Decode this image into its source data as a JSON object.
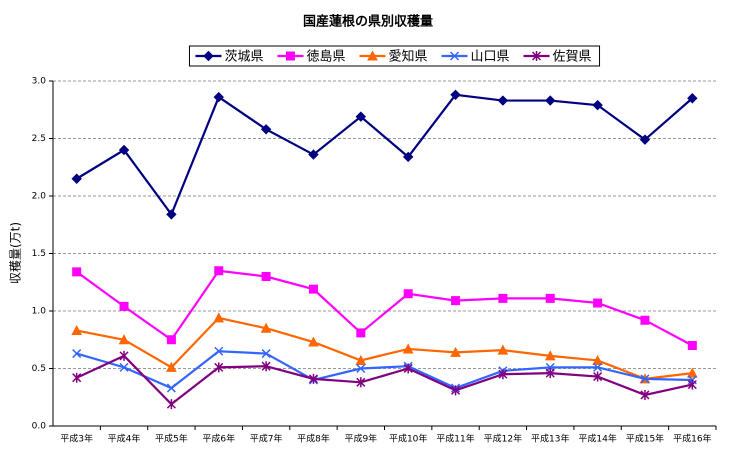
{
  "chart_data": {
    "type": "line",
    "title": "国産蓮根の県別収穫量",
    "y_label": "収穫量(万t)",
    "categories": [
      "平成3年",
      "平成4年",
      "平成5年",
      "平成6年",
      "平成7年",
      "平成8年",
      "平成9年",
      "平成10年",
      "平成11年",
      "平成12年",
      "平成13年",
      "平成14年",
      "平成15年",
      "平成16年"
    ],
    "series": [
      {
        "name": "茨城県",
        "color": "#000080",
        "marker": "diamond",
        "values": [
          2.15,
          2.4,
          1.84,
          2.86,
          2.58,
          2.36,
          2.69,
          2.34,
          2.88,
          2.83,
          2.83,
          2.79,
          2.49,
          2.85
        ]
      },
      {
        "name": "徳島県",
        "color": "#ff00ff",
        "marker": "square",
        "values": [
          1.34,
          1.04,
          0.75,
          1.35,
          1.3,
          1.19,
          0.81,
          1.15,
          1.09,
          1.11,
          1.11,
          1.07,
          0.92,
          0.7
        ]
      },
      {
        "name": "愛知県",
        "color": "#ff6600",
        "marker": "triangle",
        "values": [
          0.83,
          0.75,
          0.51,
          0.94,
          0.85,
          0.73,
          0.57,
          0.67,
          0.64,
          0.66,
          0.61,
          0.57,
          0.41,
          0.46
        ]
      },
      {
        "name": "山口県",
        "color": "#3366ff",
        "marker": "x",
        "values": [
          0.63,
          0.51,
          0.33,
          0.65,
          0.63,
          0.4,
          0.5,
          0.52,
          0.33,
          0.48,
          0.51,
          0.51,
          0.41,
          0.4
        ]
      },
      {
        "name": "佐賀県",
        "color": "#800080",
        "marker": "star",
        "values": [
          0.42,
          0.61,
          0.19,
          0.51,
          0.52,
          0.41,
          0.38,
          0.5,
          0.31,
          0.45,
          0.46,
          0.43,
          0.27,
          0.36
        ]
      }
    ],
    "ylim": [
      0,
      3
    ],
    "yticks": [
      {
        "value": 0,
        "label": "0.0"
      },
      {
        "value": 0.5,
        "label": "0.5"
      },
      {
        "value": 1,
        "label": "1.0"
      },
      {
        "value": 1.5,
        "label": "1.5"
      },
      {
        "value": 2,
        "label": "2.0"
      },
      {
        "value": 2.5,
        "label": "2.5"
      },
      {
        "value": 3,
        "label": "3.0"
      }
    ],
    "grid": true,
    "legend": "top"
  }
}
